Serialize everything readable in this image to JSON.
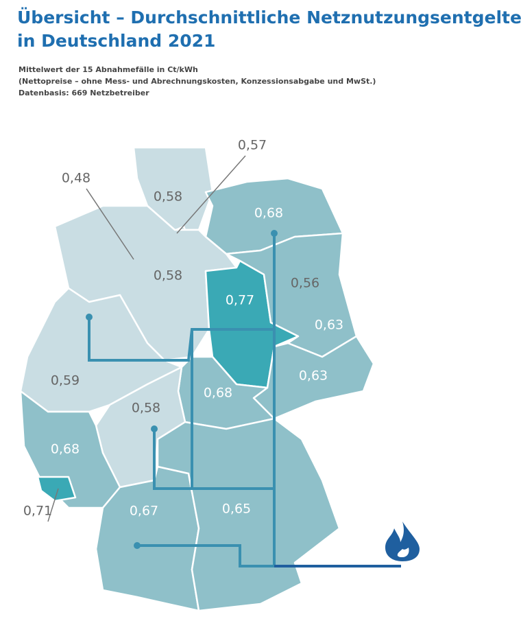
{
  "header": {
    "title_lines": [
      "Übersicht – Durchschnittliche Netznutzungsentgelte Gas",
      "in Deutschland 2021"
    ],
    "subtitle_lines": [
      "Mittelwert der 15 Abnahmefälle in Ct/kWh",
      "(Nettopreise – ohne Mess- und Abrechnungskosten, Konzessionsabgabe und MwSt.)",
      "Datenbasis: 669 Netzbetreiber"
    ]
  },
  "regions": [
    {
      "value": 0.58,
      "label": "0,58"
    },
    {
      "value": 0.57,
      "label": "0,57"
    },
    {
      "value": 0.48,
      "label": "0,48"
    },
    {
      "value": 0.68,
      "label": "0,68"
    },
    {
      "value": 0.58,
      "label": "0,58"
    },
    {
      "value": 0.77,
      "label": "0,77"
    },
    {
      "value": 0.56,
      "label": "0,56"
    },
    {
      "value": 0.63,
      "label": "0,63"
    },
    {
      "value": 0.63,
      "label": "0,63"
    },
    {
      "value": 0.68,
      "label": "0,68"
    },
    {
      "value": 0.59,
      "label": "0,59"
    },
    {
      "value": 0.58,
      "label": "0,58"
    },
    {
      "value": 0.68,
      "label": "0,68"
    },
    {
      "value": 0.71,
      "label": "0,71"
    },
    {
      "value": 0.67,
      "label": "0,67"
    },
    {
      "value": 0.65,
      "label": "0,65"
    }
  ]
}
